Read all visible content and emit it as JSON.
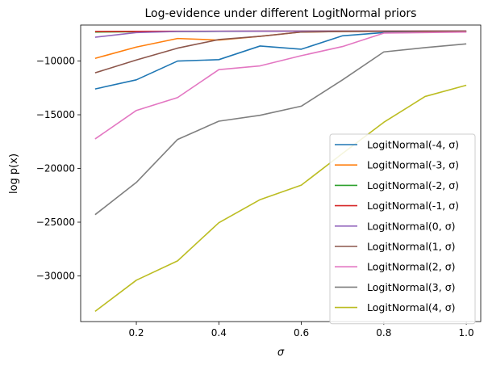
{
  "chart_data": {
    "type": "line",
    "title": "Log-evidence under different LogitNormal priors",
    "xlabel": "σ",
    "ylabel": "log p(x)",
    "xlim": [
      0.065,
      1.035
    ],
    "ylim": [
      -34250,
      -6650
    ],
    "xticks": [
      0.2,
      0.4,
      0.6,
      0.8,
      1.0
    ],
    "xtick_labels": [
      "0.2",
      "0.4",
      "0.6",
      "0.8",
      "1.0"
    ],
    "yticks": [
      -10000,
      -15000,
      -20000,
      -25000,
      -30000
    ],
    "ytick_labels": [
      "−10000",
      "−15000",
      "−20000",
      "−25000",
      "−30000"
    ],
    "grid": false,
    "legend_position": "bottom-right",
    "x": [
      0.1,
      0.2,
      0.3,
      0.4,
      0.5,
      0.6,
      0.7,
      0.8,
      0.9,
      1.0
    ],
    "series": [
      {
        "name": "LogitNormal(-4, σ)",
        "color": "#1f77b4",
        "values": [
          -12600,
          -11750,
          -10000,
          -9870,
          -8600,
          -8900,
          -7650,
          -7350,
          -7300,
          -7300
        ]
      },
      {
        "name": "LogitNormal(-3, σ)",
        "color": "#ff7f0e",
        "values": [
          -9750,
          -8700,
          -7900,
          -8050,
          -7700,
          -7300,
          -7250,
          -7230,
          -7220,
          -7220
        ]
      },
      {
        "name": "LogitNormal(-2, σ)",
        "color": "#2ca02c",
        "values": [
          -7300,
          -7280,
          -7250,
          -7240,
          -7230,
          -7220,
          -7220,
          -7220,
          -7220,
          -7220
        ]
      },
      {
        "name": "LogitNormal(-1, σ)",
        "color": "#d62728",
        "values": [
          -7250,
          -7240,
          -7230,
          -7230,
          -7220,
          -7220,
          -7220,
          -7220,
          -7220,
          -7220
        ]
      },
      {
        "name": "LogitNormal(0, σ)",
        "color": "#9467bd",
        "values": [
          -7780,
          -7350,
          -7250,
          -7230,
          -7220,
          -7220,
          -7220,
          -7220,
          -7220,
          -7220
        ]
      },
      {
        "name": "LogitNormal(1, σ)",
        "color": "#8c564b",
        "values": [
          -11100,
          -9900,
          -8800,
          -8000,
          -7700,
          -7300,
          -7250,
          -7240,
          -7230,
          -7220
        ]
      },
      {
        "name": "LogitNormal(2, σ)",
        "color": "#e377c2",
        "values": [
          -17250,
          -14600,
          -13400,
          -10800,
          -10450,
          -9500,
          -8650,
          -7400,
          -7350,
          -7300
        ]
      },
      {
        "name": "LogitNormal(3, σ)",
        "color": "#7f7f7f",
        "values": [
          -24300,
          -21300,
          -17300,
          -15600,
          -15050,
          -14200,
          -11750,
          -9150,
          -8750,
          -8400
        ]
      },
      {
        "name": "LogitNormal(4, σ)",
        "color": "#bcbd22",
        "values": [
          -33300,
          -30400,
          -28600,
          -25050,
          -22900,
          -21550,
          -18600,
          -15700,
          -13300,
          -12250
        ]
      }
    ]
  }
}
